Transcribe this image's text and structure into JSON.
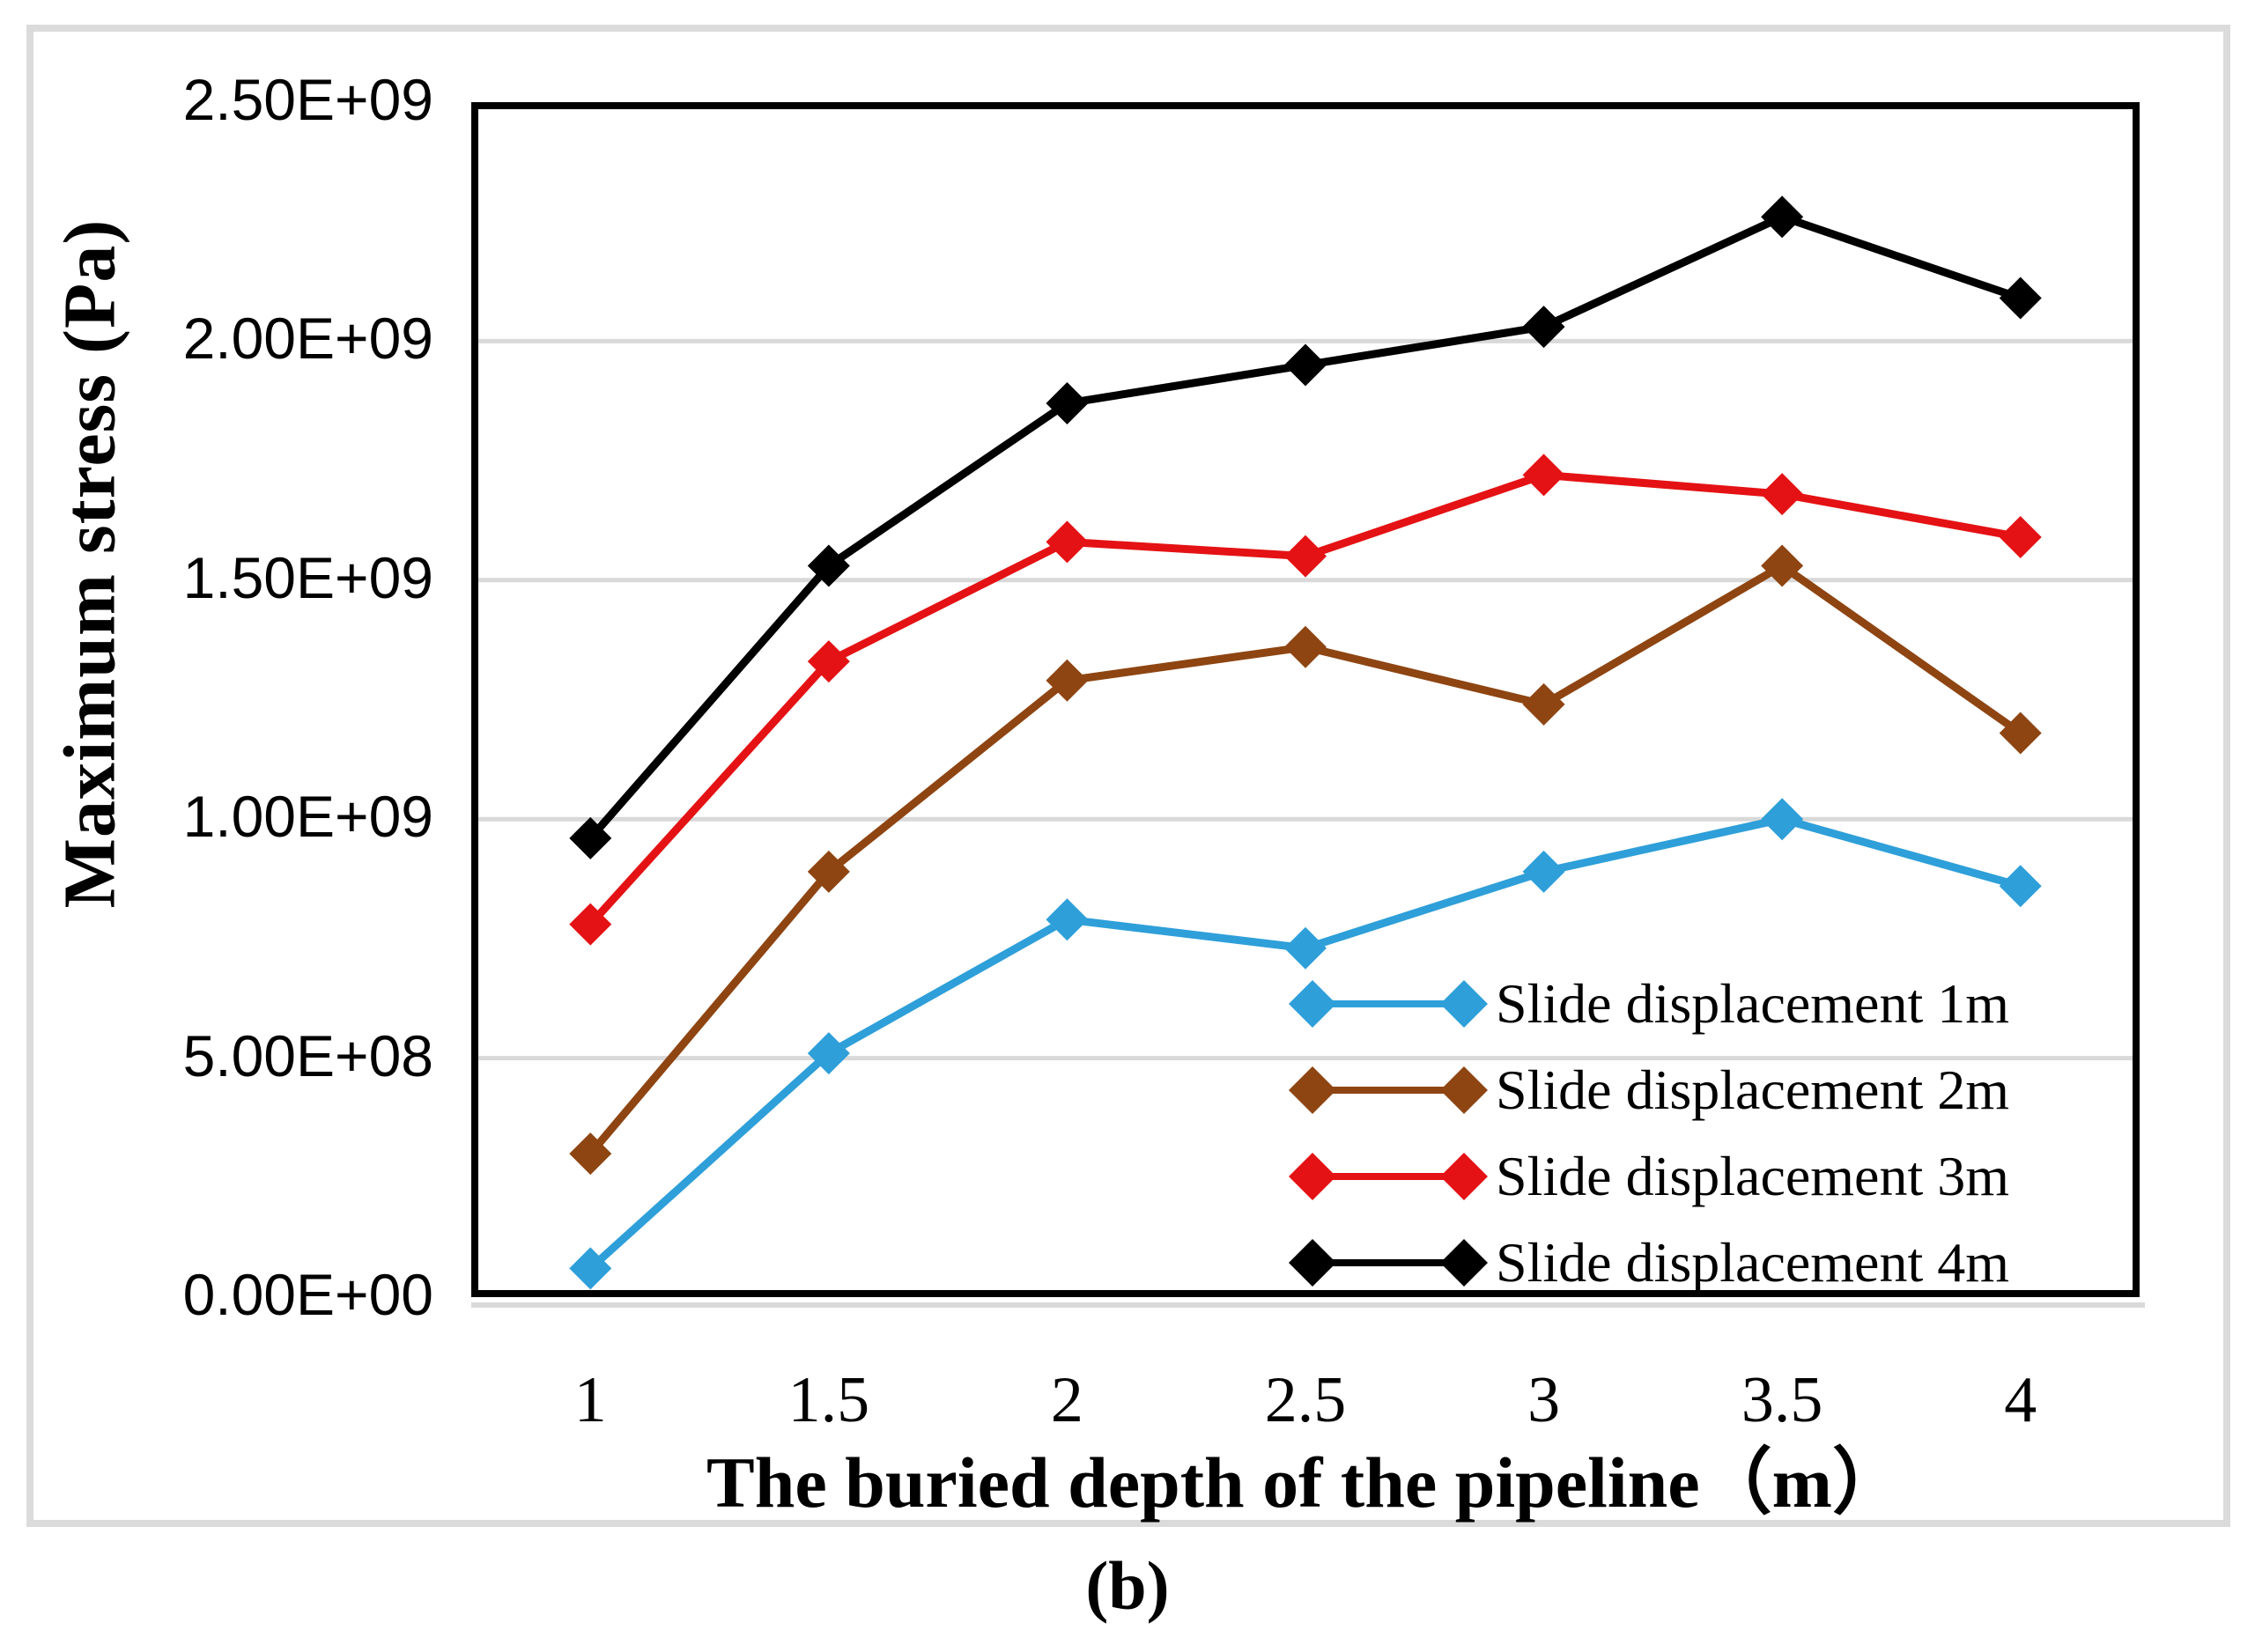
{
  "figure": {
    "caption": "(b)"
  },
  "y_axis": {
    "title": "Maximum stress (Pa)",
    "ticks_top_to_bottom": [
      "2.50E+09",
      "2.00E+09",
      "1.50E+09",
      "1.00E+09",
      "5.00E+08",
      "0.00E+00"
    ]
  },
  "x_axis": {
    "title": "The buried depth of the pipeline（m）",
    "ticks": [
      "1",
      "1.5",
      "2",
      "2.5",
      "3",
      "3.5",
      "4"
    ]
  },
  "legend": {
    "items": [
      "Slide displacement 1m",
      "Slide displacement 2m",
      "Slide displacement 3m",
      "Slide displacement 4m"
    ]
  },
  "chart_data": {
    "type": "line",
    "title": "",
    "xlabel": "The buried depth of the pipeline（m）",
    "ylabel": "Maximum stress (Pa)",
    "categories": [
      1,
      1.5,
      2,
      2.5,
      3,
      3.5,
      4
    ],
    "ylim": [
      0,
      2500000000.0
    ],
    "y_gridline_step": 500000000.0,
    "grid": "horizontal",
    "legend_position": "inside-lower-right",
    "marker": "diamond",
    "series": [
      {
        "name": "Slide displacement 1m",
        "color": "#2E9FD9",
        "values": [
          60000000.0,
          510000000.0,
          790000000.0,
          730000000.0,
          890000000.0,
          1000000000.0,
          860000000.0
        ]
      },
      {
        "name": "Slide displacement 2m",
        "color": "#8E4512",
        "values": [
          300000000.0,
          890000000.0,
          1290000000.0,
          1360000000.0,
          1240000000.0,
          1530000000.0,
          1180000000.0
        ]
      },
      {
        "name": "Slide displacement 3m",
        "color": "#E41214",
        "values": [
          780000000.0,
          1330000000.0,
          1580000000.0,
          1550000000.0,
          1720000000.0,
          1680000000.0,
          1590000000.0
        ]
      },
      {
        "name": "Slide displacement 4m",
        "color": "#000000",
        "values": [
          960000000.0,
          1530000000.0,
          1870000000.0,
          1950000000.0,
          2030000000.0,
          2260000000.0,
          2090000000.0
        ]
      }
    ],
    "colors": {
      "gridline": "#D9D9D9",
      "axis_border": "#000000",
      "frame": "#DBDBDB"
    }
  }
}
